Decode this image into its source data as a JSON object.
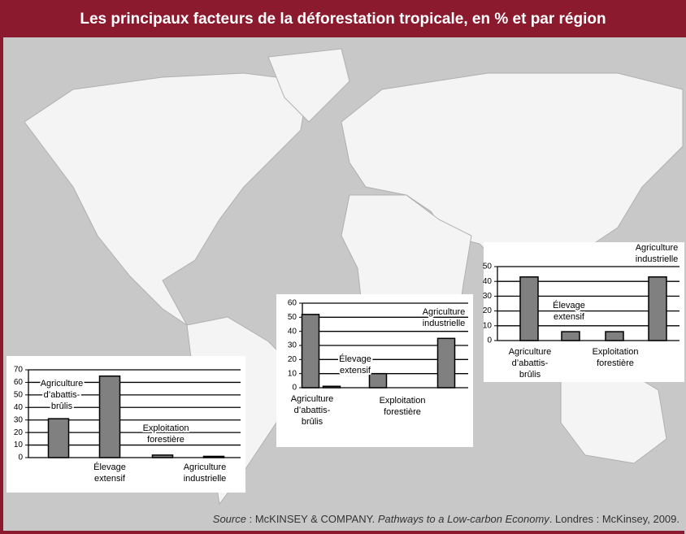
{
  "title": "Les principaux facteurs de la déforestation tropicale, en % et par région",
  "source": [
    "Source",
    " : McKINSEY & COMPANY. ",
    "Pathways to a Low-carbon Economy",
    ". Londres : McKinsey, 2009."
  ],
  "chart_data": [
    {
      "type": "bar",
      "categories": [
        "Agriculture\nd’abattis-\nbrûlis",
        "Élevage\nextensif",
        "Exploitation\nforestière",
        "Agriculture\nindustrielle"
      ],
      "values": [
        31,
        65,
        2,
        1
      ],
      "color": "#808080",
      "ylim": [
        0,
        70
      ],
      "yticks": [
        0,
        10,
        20,
        30,
        40,
        50,
        60,
        70
      ],
      "grid": true
    },
    {
      "type": "bar",
      "categories": [
        "Agriculture\nd’abattis-\nbrûlis",
        "Élevage\nextensif",
        "Exploitation\nforestière",
        "Agriculture\nindustrielle"
      ],
      "values": [
        52,
        1,
        10,
        35
      ],
      "color": "#808080",
      "ylim": [
        0,
        60
      ],
      "yticks": [
        0,
        10,
        20,
        30,
        40,
        50,
        60
      ],
      "grid": true
    },
    {
      "type": "bar",
      "categories": [
        "Agriculture\nd’abattis-\nbrûlis",
        "Élevage\nextensif",
        "Exploitation\nforestière",
        "Agriculture\nindustrielle"
      ],
      "values": [
        43,
        6,
        6,
        43
      ],
      "color": "#808080",
      "ylim": [
        0,
        50
      ],
      "yticks": [
        0,
        10,
        20,
        30,
        40,
        50
      ],
      "grid": true
    }
  ]
}
